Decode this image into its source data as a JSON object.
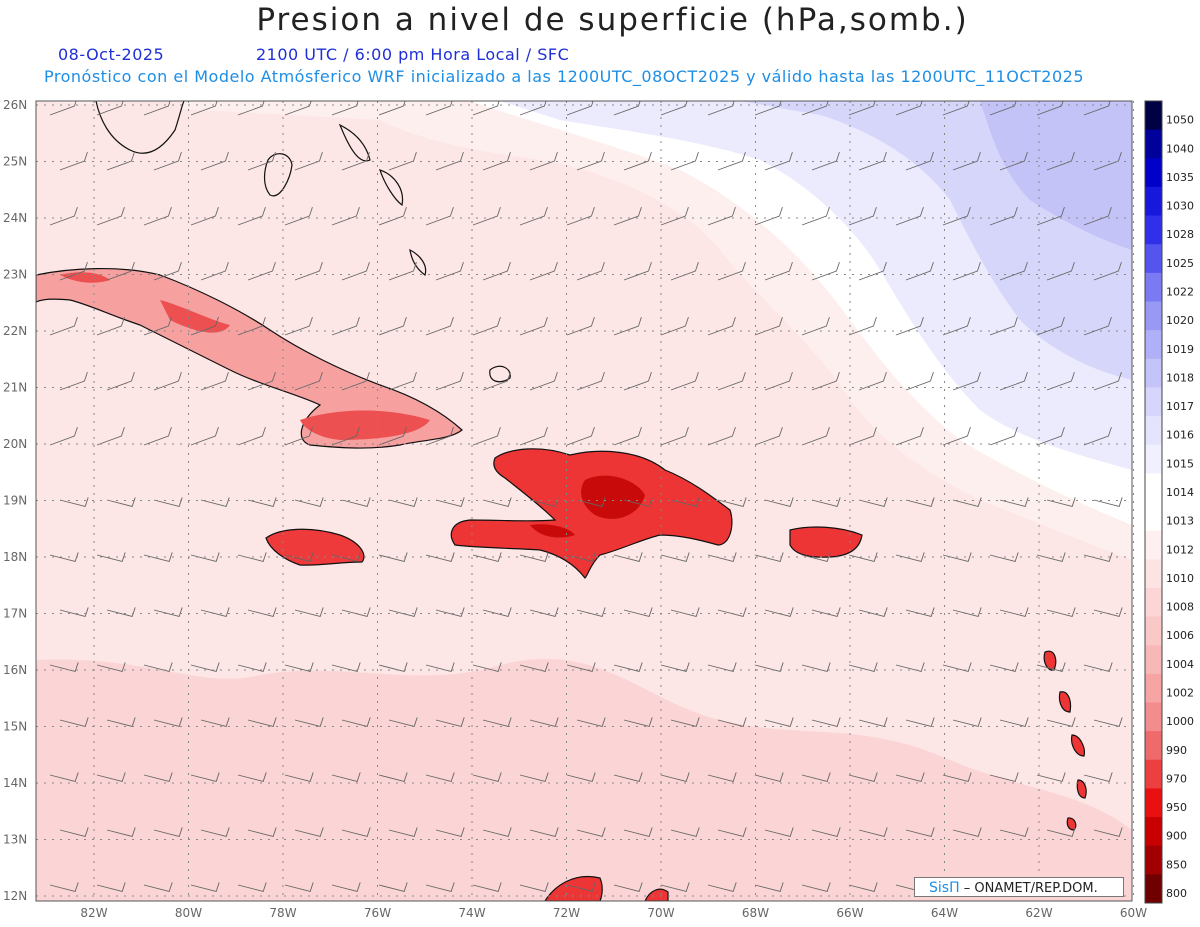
{
  "header": {
    "title": "Presion a nivel de superficie (hPa,somb.)",
    "date": "08-Oct-2025",
    "valid_time": "2100 UTC / 6:00 pm Hora Local / SFC",
    "model_note": "Pronóstico con el Modelo Atmósferico WRF inicializado a las 1200UTC_08OCT2025 y válido hasta las  1200UTC_11OCT2025"
  },
  "map": {
    "lat_labels": [
      "26N",
      "25N",
      "24N",
      "23N",
      "22N",
      "21N",
      "20N",
      "19N",
      "18N",
      "17N",
      "16N",
      "15N",
      "14N",
      "13N",
      "12N"
    ],
    "lon_labels": [
      "82W",
      "80W",
      "78W",
      "76W",
      "74W",
      "72W",
      "70W",
      "68W",
      "66W",
      "64W",
      "62W",
      "60W"
    ],
    "colors": {
      "ocean_south": "#fbd5d5",
      "ocean_mid": "#fde6e6",
      "ocean_low": "#feefef",
      "white_band": "#ffffff",
      "blue_light": "#ebebfd",
      "blue_mid": "#d6d6fb",
      "blue_dark": "#c3c3f8",
      "land": "#f03030",
      "land_dark": "#d21414"
    }
  },
  "colorbar": {
    "labels": [
      "1050",
      "1040",
      "1035",
      "1030",
      "1028",
      "1025",
      "1022",
      "1020",
      "1019",
      "1018",
      "1017",
      "1016",
      "1015",
      "1014",
      "1013",
      "1012",
      "1010",
      "1008",
      "1006",
      "1004",
      "1002",
      "1000",
      "990",
      "970",
      "950",
      "900",
      "850",
      "800"
    ],
    "colors": [
      "#000044",
      "#00009a",
      "#0000c8",
      "#1818dc",
      "#3030e8",
      "#5454ee",
      "#7a7af2",
      "#9898f5",
      "#b0b0f8",
      "#c4c4fa",
      "#d6d6fc",
      "#e4e4fd",
      "#f0f0fe",
      "#ffffff",
      "#ffffff",
      "#fef0f0",
      "#fde4e4",
      "#fcd6d6",
      "#fbc8c8",
      "#f9b8b8",
      "#f7a4a4",
      "#f38c8c",
      "#ef6a6a",
      "#ec4040",
      "#e81010",
      "#c80000",
      "#a00000",
      "#700000"
    ]
  },
  "credit": {
    "logo": "SisΠ",
    "text": " – ONAMET/REP.DOM."
  }
}
